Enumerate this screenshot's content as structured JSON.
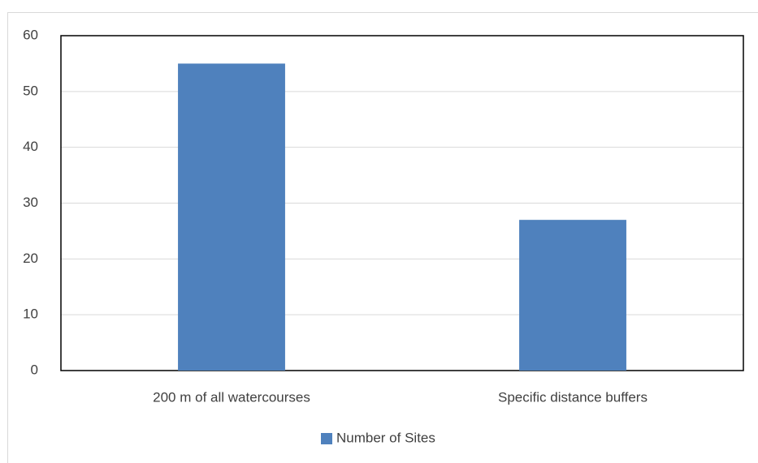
{
  "chart_data": {
    "type": "bar",
    "categories": [
      "200 m of all watercourses",
      "Specific distance buffers"
    ],
    "series": [
      {
        "name": "Number of Sites",
        "color": "#4f81bd",
        "values": [
          55,
          27
        ]
      }
    ],
    "ylim": [
      0,
      60
    ],
    "yticks": [
      0,
      10,
      20,
      30,
      40,
      50,
      60
    ],
    "grid": true,
    "legend": "bottom"
  }
}
